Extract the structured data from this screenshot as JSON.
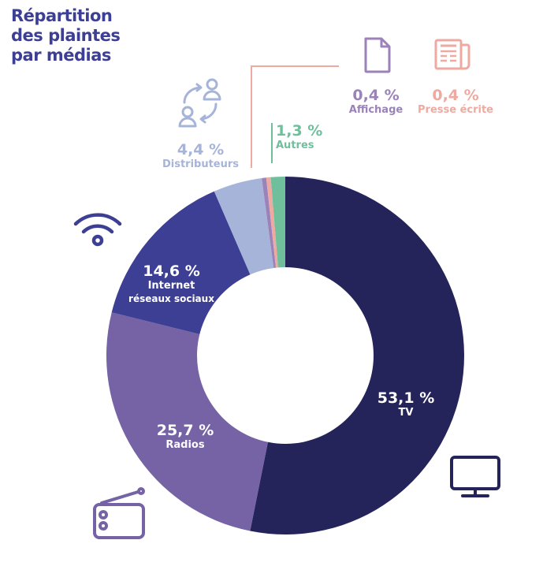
{
  "title": {
    "line1": "Répartition",
    "line2": "des plaintes",
    "line3": "par médias"
  },
  "chart_data": {
    "type": "pie",
    "variant": "donut",
    "title": "Répartition des plaintes par médias",
    "unit": "%",
    "start_angle_deg": 0,
    "direction": "clockwise",
    "categories": [
      "TV",
      "Radios",
      "Internet réseaux sociaux",
      "Distributeurs",
      "Affichage",
      "Presse écrite",
      "Autres"
    ],
    "values": [
      53.1,
      25.7,
      14.6,
      4.4,
      0.4,
      0.4,
      1.3
    ],
    "colors": [
      "#25245a",
      "#7563a5",
      "#3d3f94",
      "#a6b4d9",
      "#9b82b9",
      "#eeaaa1",
      "#6fbf9d"
    ],
    "labels": [
      "53,1 %",
      "25,7 %",
      "14,6 %",
      "4,4 %",
      "0,4 %",
      "0,4 %",
      "1,3 %"
    ],
    "legend": "none (labels placed inside / beside slices)"
  },
  "slices": {
    "tv": {
      "pct": "53,1 %",
      "name": "TV",
      "icon": "tv-icon"
    },
    "radios": {
      "pct": "25,7 %",
      "name": "Radios",
      "icon": "radio-icon"
    },
    "internet": {
      "pct": "14,6 %",
      "name_line1": "Internet",
      "name_line2": "réseaux sociaux",
      "icon": "wifi-icon"
    },
    "distributeurs": {
      "pct": "4,4 %",
      "name": "Distributeurs",
      "icon": "users-exchange-icon"
    },
    "affichage": {
      "pct": "0,4 %",
      "name": "Affichage",
      "icon": "document-icon"
    },
    "presse": {
      "pct": "0,4 %",
      "name": "Presse écrite",
      "icon": "newspaper-icon"
    },
    "autres": {
      "pct": "1,3 %",
      "name": "Autres"
    }
  },
  "colors": {
    "title": "#3d3f94",
    "tv": "#25245a",
    "radios": "#7563a5",
    "internet": "#3d3f94",
    "distributeurs": "#a6b4d9",
    "affichage": "#9b82b9",
    "presse": "#eeaaa1",
    "autres": "#6fbf9d"
  }
}
